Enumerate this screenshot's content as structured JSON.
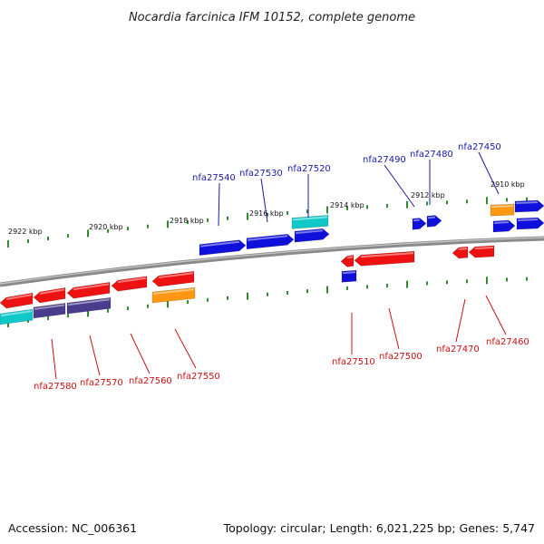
{
  "title": "Nocardia farcinica IFM 10152, complete genome",
  "footer": {
    "accession": "Accession: NC_006361",
    "summary": "Topology: circular; Length: 6,021,225 bp; Genes: 5,747"
  },
  "colors": {
    "backbone": "#8a8a8a",
    "tick": "#2e8b2e",
    "label_top": "#1a1aaa",
    "label_bottom": "#cc1111",
    "red": "#ee1111",
    "blue": "#1010dd",
    "cyan": "#10c8c8",
    "orange": "#ff9810",
    "purple": "#4a3c8c"
  },
  "kbp_ticks": [
    "2922 kbp",
    "2920 kbp",
    "2918 kbp",
    "2916 kbp",
    "2914 kbp",
    "2912 kbp",
    "2910 kbp"
  ],
  "top_labels": [
    "nfa27540",
    "nfa27530",
    "nfa27520",
    "nfa27490",
    "nfa27480",
    "nfa27450"
  ],
  "bottom_labels": [
    "nfa27580",
    "nfa27570",
    "nfa27560",
    "nfa27550",
    "nfa27510",
    "nfa27500",
    "nfa27470",
    "nfa27460"
  ],
  "genes": [
    {
      "color": "blue",
      "dir": "right"
    },
    {
      "color": "blue",
      "dir": "right"
    },
    {
      "color": "blue",
      "dir": "right"
    },
    {
      "color": "cyan",
      "dir": "none"
    },
    {
      "color": "blue",
      "dir": "right"
    },
    {
      "color": "blue",
      "dir": "right"
    },
    {
      "color": "orange",
      "dir": "none"
    },
    {
      "color": "blue",
      "dir": "right"
    },
    {
      "color": "blue",
      "dir": "right"
    },
    {
      "color": "blue",
      "dir": "right"
    },
    {
      "color": "red",
      "dir": "left"
    },
    {
      "color": "red",
      "dir": "left"
    },
    {
      "color": "red",
      "dir": "left"
    },
    {
      "color": "red",
      "dir": "left"
    },
    {
      "color": "red",
      "dir": "left"
    },
    {
      "color": "cyan",
      "dir": "none"
    },
    {
      "color": "purple",
      "dir": "none"
    },
    {
      "color": "purple",
      "dir": "none"
    },
    {
      "color": "orange",
      "dir": "none"
    },
    {
      "color": "red",
      "dir": "left"
    },
    {
      "color": "red",
      "dir": "left"
    },
    {
      "color": "blue",
      "dir": "none"
    },
    {
      "color": "red",
      "dir": "left"
    },
    {
      "color": "red",
      "dir": "left"
    }
  ]
}
